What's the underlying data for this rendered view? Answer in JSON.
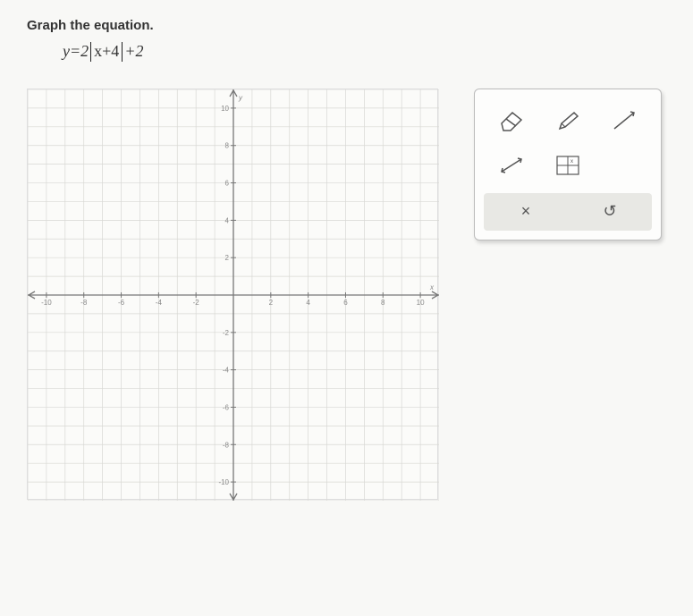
{
  "prompt": "Graph the equation.",
  "equation": {
    "lhs": "y",
    "eq": "=",
    "coef": "2",
    "abs_inner": "x+4",
    "tail": "+2"
  },
  "graph": {
    "xmin": -11,
    "xmax": 11,
    "ymin": -11,
    "ymax": 11,
    "grid_step": 1,
    "major_ticks": [
      -10,
      -8,
      -6,
      -4,
      -2,
      2,
      4,
      6,
      8,
      10
    ],
    "axis_label_x": "x",
    "axis_label_y": "y",
    "grid_color": "#d8d8d4",
    "axis_color": "#777",
    "tick_label_color": "#888",
    "background": "#fbfbf9"
  },
  "toolbox": {
    "tools": [
      {
        "name": "eraser-icon"
      },
      {
        "name": "pencil-icon"
      },
      {
        "name": "ray-icon"
      },
      {
        "name": "segment-arrows-icon"
      },
      {
        "name": "graph-paper-icon"
      }
    ],
    "actions": {
      "clear_label": "×",
      "undo_label": "↺"
    },
    "stroke_color": "#555",
    "panel_bg": "#fdfdfc",
    "action_bg": "#e8e8e4"
  }
}
